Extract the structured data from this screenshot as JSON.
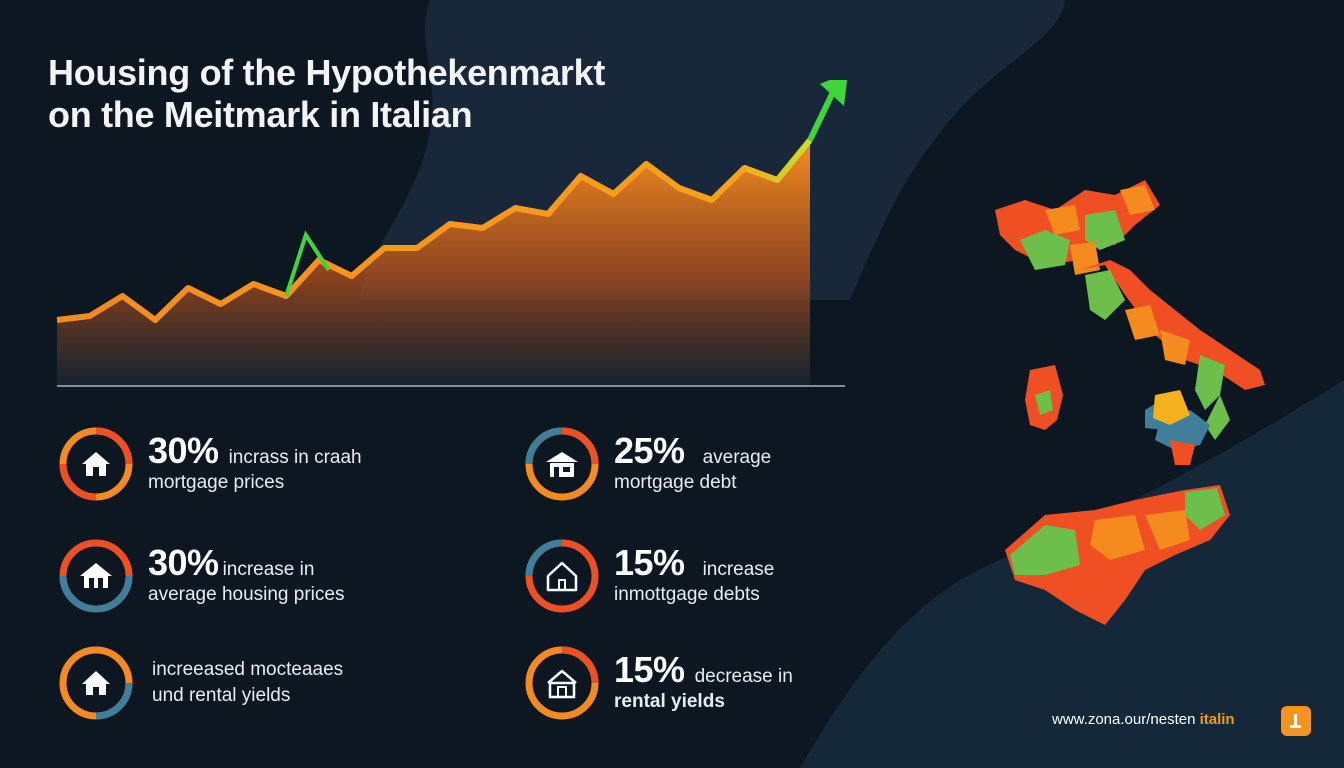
{
  "header": {
    "title_line1": "Housing of the Hypothekenmarkt",
    "title_line2": "on the Meitmark in Italian"
  },
  "chart_data": {
    "type": "area",
    "x": [
      1,
      2,
      3,
      4,
      5,
      6,
      7,
      8,
      9,
      10,
      11,
      12,
      13,
      14,
      15,
      16,
      17,
      18,
      19,
      20,
      21,
      22,
      23,
      24,
      25
    ],
    "values": [
      10,
      12,
      22,
      10,
      26,
      18,
      28,
      22,
      40,
      32,
      46,
      46,
      58,
      56,
      66,
      63,
      82,
      73,
      88,
      76,
      70,
      86,
      80,
      100,
      118
    ],
    "highlight_color": "#3fd63a",
    "line_color": "#f58a1f",
    "trend_arrow": "up"
  },
  "stats": [
    {
      "big": "30%",
      "text1": "incrass in craah",
      "text2": "mortgage prices",
      "icon": "house-icon"
    },
    {
      "big": "25%",
      "text1": "average",
      "text2": "mortgage debt",
      "icon": "house-icon"
    },
    {
      "big": "30%",
      "text1": "increase in",
      "text2": "average housing prices",
      "icon": "house-icon"
    },
    {
      "big": "15%",
      "text1": "increase",
      "text2": "inmottgage debts",
      "icon": "house-outline-icon"
    },
    {
      "big": "",
      "text1": "increeased mocteaaes",
      "text2": "und rental yields",
      "icon": "house-icon"
    },
    {
      "big": "15%",
      "text1": "decrease in",
      "text2": "rental yields",
      "icon": "house-icon"
    }
  ],
  "footer": {
    "url": "www.zona.our/nesten ",
    "brand": "italin"
  },
  "colors": {
    "background": "#0d1722",
    "orange": "#f58a1f",
    "red": "#f04e23",
    "green": "#6cbf4a",
    "blue": "#3f7f9c"
  }
}
